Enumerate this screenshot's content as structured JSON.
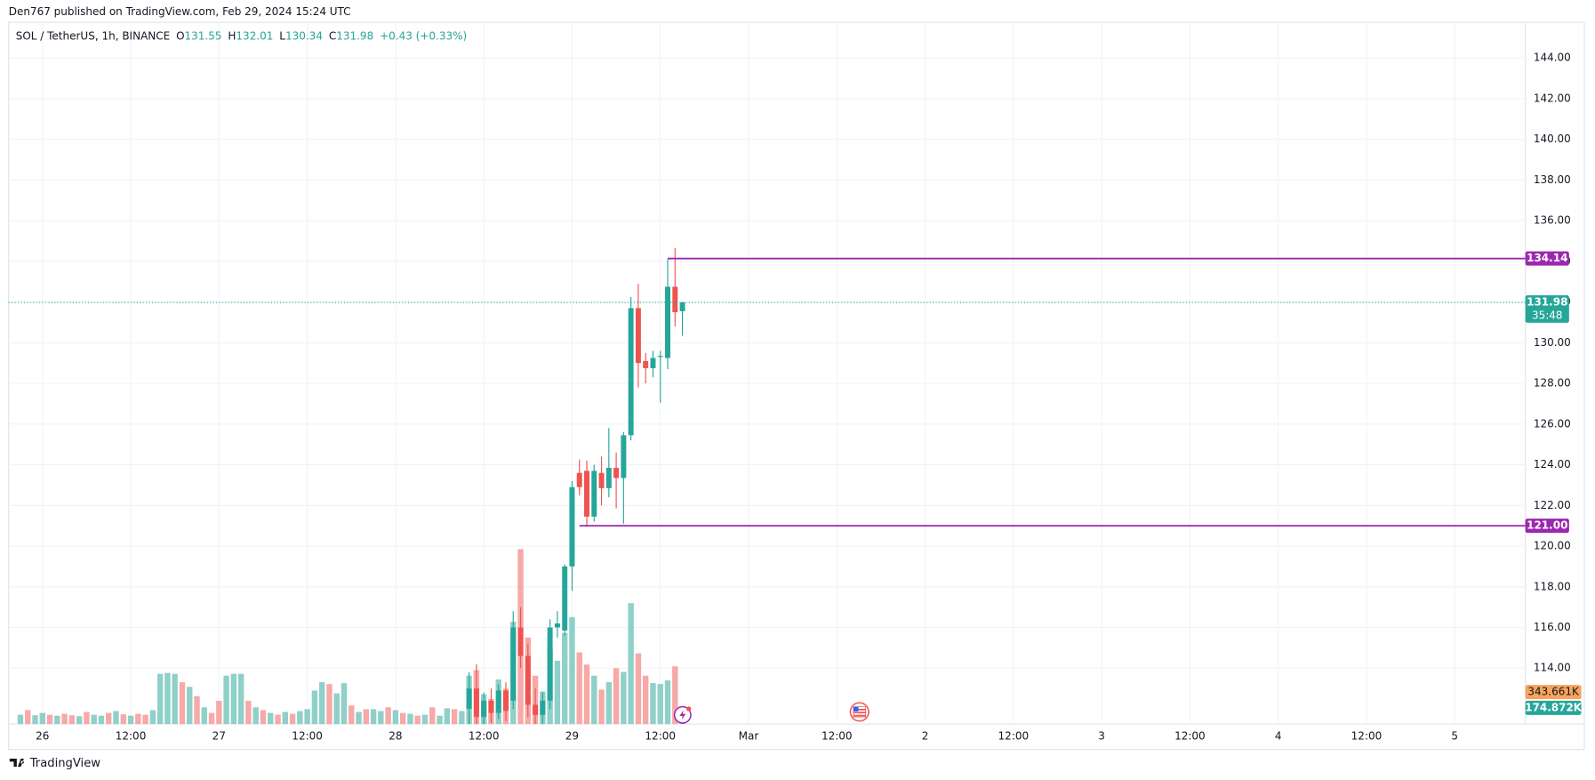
{
  "header": {
    "published": "Den767 published on TradingView.com, Feb 29, 2024 15:24 UTC"
  },
  "footer": {
    "brand": "TradingView"
  },
  "chart_data": {
    "type": "candlestick",
    "symbol": "SOL / TetherUS, 1h, BINANCE",
    "ohlc": [
      {
        "label": "O",
        "value": "131.55"
      },
      {
        "label": "H",
        "value": "132.01"
      },
      {
        "label": "L",
        "value": "130.34"
      },
      {
        "label": "C",
        "value": "131.98"
      }
    ],
    "change": "+0.43 (+0.33%)",
    "up_color": "#26a69a",
    "down_color": "#ef5350",
    "volume_up_color": "#8fd0c9",
    "volume_down_color": "#f7a9a7",
    "ylim": [
      111.25,
      145.75
    ],
    "yticks": [
      {
        "value": 114,
        "label": "114.00"
      },
      {
        "value": 116,
        "label": "116.00"
      },
      {
        "value": 118,
        "label": "118.00"
      },
      {
        "value": 120,
        "label": "120.00"
      },
      {
        "value": 122,
        "label": "122.00"
      },
      {
        "value": 124,
        "label": "124.00"
      },
      {
        "value": 126,
        "label": "126.00"
      },
      {
        "value": 128,
        "label": "128.00"
      },
      {
        "value": 130,
        "label": "130.00"
      },
      {
        "value": 132,
        "label": "132.00"
      },
      {
        "value": 134,
        "label": "134.00"
      },
      {
        "value": 136,
        "label": "136.00"
      },
      {
        "value": 138,
        "label": "138.00"
      },
      {
        "value": 140,
        "label": "140.00"
      },
      {
        "value": 142,
        "label": "142.00"
      },
      {
        "value": 144,
        "label": "144.00"
      }
    ],
    "xlim": [
      -4.6,
      201.6
    ],
    "xticks": [
      {
        "value": 0,
        "label": "26"
      },
      {
        "value": 12,
        "label": "12:00"
      },
      {
        "value": 24,
        "label": "27"
      },
      {
        "value": 36,
        "label": "12:00"
      },
      {
        "value": 48,
        "label": "28"
      },
      {
        "value": 60,
        "label": "12:00"
      },
      {
        "value": 72,
        "label": "29"
      },
      {
        "value": 84,
        "label": "12:00"
      },
      {
        "value": 96,
        "label": "Mar"
      },
      {
        "value": 108,
        "label": "12:00"
      },
      {
        "value": 120,
        "label": "2"
      },
      {
        "value": 132,
        "label": "12:00"
      },
      {
        "value": 144,
        "label": "3"
      },
      {
        "value": 156,
        "label": "12:00"
      },
      {
        "value": 168,
        "label": "4"
      },
      {
        "value": 180,
        "label": "12:00"
      },
      {
        "value": 192,
        "label": "5"
      }
    ],
    "grid": true,
    "candles": [
      {
        "x": 58,
        "open": 112.0,
        "high": 113.8,
        "low": 111.0,
        "close": 113.0
      },
      {
        "x": 59,
        "open": 113.0,
        "high": 114.2,
        "low": 111.2,
        "close": 111.6
      },
      {
        "x": 60,
        "open": 111.6,
        "high": 112.8,
        "low": 111.0,
        "close": 112.4
      },
      {
        "x": 61,
        "open": 112.4,
        "high": 113.0,
        "low": 111.3,
        "close": 111.8
      },
      {
        "x": 62,
        "open": 111.8,
        "high": 113.2,
        "low": 111.5,
        "close": 112.9
      },
      {
        "x": 63,
        "open": 112.9,
        "high": 113.3,
        "low": 111.4,
        "close": 111.9
      },
      {
        "x": 64,
        "open": 112.4,
        "high": 116.8,
        "low": 112.0,
        "close": 116.0
      },
      {
        "x": 65,
        "open": 116.0,
        "high": 117.0,
        "low": 114.0,
        "close": 114.6
      },
      {
        "x": 66,
        "open": 114.6,
        "high": 115.2,
        "low": 111.6,
        "close": 112.2
      },
      {
        "x": 67,
        "open": 112.2,
        "high": 113.0,
        "low": 111.0,
        "close": 111.7
      },
      {
        "x": 68,
        "open": 111.7,
        "high": 112.8,
        "low": 111.2,
        "close": 112.4
      },
      {
        "x": 69,
        "open": 112.4,
        "high": 116.4,
        "low": 112.0,
        "close": 116.0
      },
      {
        "x": 70,
        "open": 116.0,
        "high": 116.8,
        "low": 115.5,
        "close": 116.2
      },
      {
        "x": 71,
        "open": 115.85,
        "high": 119.1,
        "low": 115.6,
        "close": 119.0
      },
      {
        "x": 72,
        "open": 119.0,
        "high": 123.2,
        "low": 117.8,
        "close": 122.9
      },
      {
        "x": 73,
        "open": 123.6,
        "high": 124.25,
        "low": 122.5,
        "close": 122.9
      },
      {
        "x": 74,
        "open": 123.7,
        "high": 124.2,
        "low": 120.95,
        "close": 121.45
      },
      {
        "x": 75,
        "open": 121.45,
        "high": 124.0,
        "low": 121.2,
        "close": 123.7
      },
      {
        "x": 76,
        "open": 123.6,
        "high": 124.4,
        "low": 122.0,
        "close": 122.85
      },
      {
        "x": 77,
        "open": 122.85,
        "high": 125.8,
        "low": 122.4,
        "close": 123.85
      },
      {
        "x": 78,
        "open": 123.85,
        "high": 124.6,
        "low": 121.85,
        "close": 123.35
      },
      {
        "x": 79,
        "open": 123.35,
        "high": 125.6,
        "low": 121.1,
        "close": 125.45
      },
      {
        "x": 80,
        "open": 125.45,
        "high": 132.25,
        "low": 125.2,
        "close": 131.7
      },
      {
        "x": 81,
        "open": 131.7,
        "high": 132.9,
        "low": 127.8,
        "close": 129.0
      },
      {
        "x": 82,
        "open": 129.1,
        "high": 129.5,
        "low": 128.0,
        "close": 128.75
      },
      {
        "x": 83,
        "open": 128.75,
        "high": 129.6,
        "low": 128.3,
        "close": 129.25
      },
      {
        "x": 84,
        "open": 129.3,
        "high": 129.6,
        "low": 127.05,
        "close": 129.35
      },
      {
        "x": 85,
        "open": 129.25,
        "high": 134.1,
        "low": 128.7,
        "close": 132.75
      },
      {
        "x": 86,
        "open": 132.75,
        "high": 134.65,
        "low": 130.8,
        "close": 131.5
      },
      {
        "x": 87,
        "open": 131.55,
        "high": 132.01,
        "low": 130.34,
        "close": 131.98
      }
    ],
    "volume_hours": [
      -3,
      -2,
      -1,
      0,
      1,
      2,
      3,
      4,
      5,
      6,
      7,
      8,
      9,
      10,
      11,
      12,
      13,
      14,
      15,
      16,
      17,
      18,
      19,
      20,
      21,
      22,
      23,
      24,
      25,
      26,
      27,
      28,
      29,
      30,
      31,
      32,
      33,
      34,
      35,
      36,
      37,
      38,
      39,
      40,
      41,
      42,
      43,
      44,
      45,
      46,
      47,
      48,
      49,
      50,
      51,
      52,
      53,
      54,
      55,
      56,
      57,
      58,
      59,
      60,
      61,
      62,
      63,
      64,
      65,
      66,
      67,
      68,
      69,
      70,
      71,
      72,
      73,
      74,
      75,
      76,
      77,
      78,
      79,
      80,
      81,
      82,
      83,
      84,
      85,
      86,
      87
    ],
    "volume": [
      100,
      150,
      95,
      120,
      100,
      90,
      110,
      95,
      85,
      130,
      100,
      90,
      120,
      140,
      105,
      90,
      110,
      100,
      150,
      540,
      550,
      540,
      450,
      400,
      300,
      180,
      120,
      250,
      520,
      540,
      540,
      250,
      180,
      150,
      120,
      100,
      130,
      110,
      140,
      160,
      360,
      450,
      430,
      330,
      440,
      200,
      130,
      160,
      160,
      140,
      180,
      150,
      120,
      110,
      90,
      100,
      180,
      90,
      170,
      160,
      140,
      520,
      580,
      320,
      270,
      480,
      380,
      1100,
      1880,
      930,
      520,
      350,
      800,
      680,
      980,
      1150,
      770,
      640,
      520,
      370,
      450,
      600,
      560,
      1300,
      760,
      520,
      440,
      430,
      470,
      620,
      174.872
    ],
    "volume_dir": [
      "u",
      "d",
      "u",
      "u",
      "d",
      "u",
      "d",
      "d",
      "u",
      "d",
      "u",
      "u",
      "d",
      "u",
      "d",
      "u",
      "d",
      "d",
      "u",
      "u",
      "u",
      "u",
      "d",
      "u",
      "d",
      "u",
      "d",
      "d",
      "u",
      "u",
      "u",
      "d",
      "u",
      "d",
      "u",
      "d",
      "u",
      "d",
      "u",
      "u",
      "u",
      "u",
      "d",
      "u",
      "u",
      "d",
      "u",
      "d",
      "u",
      "u",
      "d",
      "u",
      "d",
      "u",
      "d",
      "u",
      "d",
      "u",
      "u",
      "d",
      "u",
      "u",
      "d",
      "u",
      "d",
      "u",
      "d",
      "u",
      "d",
      "d",
      "d",
      "u",
      "u",
      "u",
      "u",
      "u",
      "d",
      "d",
      "u",
      "d",
      "u",
      "d",
      "u",
      "u",
      "d",
      "d",
      "u",
      "u",
      "u",
      "d",
      "u"
    ],
    "volume_label": {
      "value": 174.872,
      "label": "174.872K"
    },
    "volume_ma_label": {
      "value": 343.661,
      "label": "343.661K"
    },
    "volume_ma_color": "#f7a35c",
    "levels": [
      {
        "from": 85,
        "value": 134.14,
        "label": "134.14",
        "color": "#9c27b0"
      },
      {
        "from": 73,
        "value": 121.0,
        "label": "121.00",
        "color": "#9c27b0"
      }
    ],
    "last_price": {
      "value": 131.98,
      "label": "131.98",
      "countdown": "35:48"
    }
  }
}
